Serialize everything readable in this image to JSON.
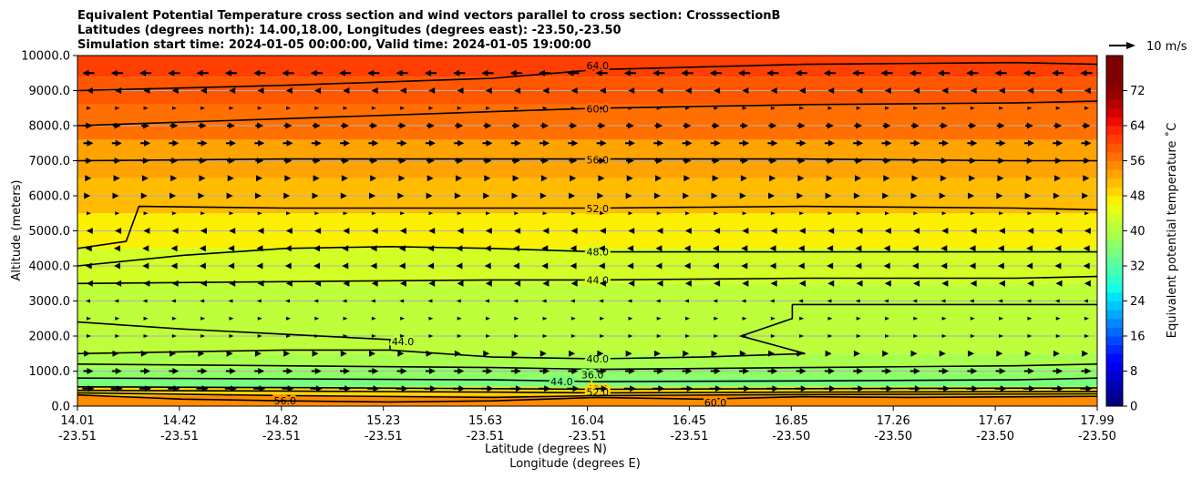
{
  "figure": {
    "title_lines": [
      "Equivalent Potential Temperature cross section and wind vectors parallel to cross section: CrosssectionB",
      "Latitudes (degrees north): 14.00,18.00, Longitudes (degrees east): -23.50,-23.50",
      "Simulation start time: 2024-01-05 00:00:00, Valid time: 2024-01-05 19:00:00"
    ]
  },
  "chart_data": {
    "type": "heatmap",
    "ylabel": "Altitude (meters)",
    "xlabel_lat": "Latitude (degrees N)",
    "xlabel_lon": "Longitude (degrees E)",
    "ylim": [
      0,
      10000
    ],
    "y_ticks": [
      "0.0",
      "1000.0",
      "2000.0",
      "3000.0",
      "4000.0",
      "5000.0",
      "6000.0",
      "7000.0",
      "8000.0",
      "9000.0",
      "10000.0"
    ],
    "x_ticks_lat": [
      "14.01",
      "14.42",
      "14.82",
      "15.23",
      "15.63",
      "16.04",
      "16.45",
      "16.85",
      "17.26",
      "17.67",
      "17.99"
    ],
    "x_ticks_lon": [
      "-23.51",
      "-23.51",
      "-23.51",
      "-23.51",
      "-23.51",
      "-23.51",
      "-23.51",
      "-23.50",
      "-23.50",
      "-23.50",
      "-23.50"
    ],
    "grid": "horizontal",
    "colorbar": {
      "label": "Equivalent potential temperature ˚C",
      "range": [
        0,
        80
      ],
      "ticks": [
        "0",
        "8",
        "16",
        "24",
        "32",
        "40",
        "48",
        "56",
        "64",
        "72"
      ],
      "levels": [
        {
          "min": 0,
          "max": 2,
          "color": "#00007f"
        },
        {
          "min": 2,
          "max": 4,
          "color": "#00009b"
        },
        {
          "min": 4,
          "max": 6,
          "color": "#0000b7"
        },
        {
          "min": 6,
          "max": 8,
          "color": "#0000d3"
        },
        {
          "min": 8,
          "max": 10,
          "color": "#0000ef"
        },
        {
          "min": 10,
          "max": 12,
          "color": "#0008ff"
        },
        {
          "min": 12,
          "max": 14,
          "color": "#0028ff"
        },
        {
          "min": 14,
          "max": 16,
          "color": "#0048ff"
        },
        {
          "min": 16,
          "max": 18,
          "color": "#0068ff"
        },
        {
          "min": 18,
          "max": 20,
          "color": "#0088ff"
        },
        {
          "min": 20,
          "max": 22,
          "color": "#00a8ff"
        },
        {
          "min": 22,
          "max": 24,
          "color": "#00c8ff"
        },
        {
          "min": 24,
          "max": 26,
          "color": "#00e4f8"
        },
        {
          "min": 26,
          "max": 28,
          "color": "#14ffe2"
        },
        {
          "min": 28,
          "max": 30,
          "color": "#2dffca"
        },
        {
          "min": 30,
          "max": 32,
          "color": "#46ffb1"
        },
        {
          "min": 32,
          "max": 34,
          "color": "#5eff98"
        },
        {
          "min": 34,
          "max": 36,
          "color": "#77ff7f"
        },
        {
          "min": 36,
          "max": 38,
          "color": "#8fff67"
        },
        {
          "min": 38,
          "max": 40,
          "color": "#a8ff4e"
        },
        {
          "min": 40,
          "max": 42,
          "color": "#bcff3a"
        },
        {
          "min": 42,
          "max": 44,
          "color": "#d2ff25"
        },
        {
          "min": 44,
          "max": 46,
          "color": "#e8ff0f"
        },
        {
          "min": 46,
          "max": 48,
          "color": "#fbf000"
        },
        {
          "min": 48,
          "max": 50,
          "color": "#ffd600"
        },
        {
          "min": 50,
          "max": 52,
          "color": "#ffbc00"
        },
        {
          "min": 52,
          "max": 54,
          "color": "#ffa300"
        },
        {
          "min": 54,
          "max": 56,
          "color": "#ff8a00"
        },
        {
          "min": 56,
          "max": 58,
          "color": "#ff7000"
        },
        {
          "min": 58,
          "max": 60,
          "color": "#ff5700"
        },
        {
          "min": 60,
          "max": 62,
          "color": "#ff3e00"
        },
        {
          "min": 62,
          "max": 64,
          "color": "#ff2400"
        },
        {
          "min": 64,
          "max": 66,
          "color": "#ef0b00"
        },
        {
          "min": 66,
          "max": 68,
          "color": "#d30000"
        },
        {
          "min": 68,
          "max": 70,
          "color": "#b70000"
        },
        {
          "min": 70,
          "max": 72,
          "color": "#9b0000"
        },
        {
          "min": 72,
          "max": 74,
          "color": "#8b0000"
        },
        {
          "min": 74,
          "max": 80,
          "color": "#7f0000"
        }
      ]
    },
    "field_bands": [
      {
        "y_bottom": 0,
        "y_top": 300,
        "theta_e": 55
      },
      {
        "y_bottom": 300,
        "y_top": 550,
        "theta_e": 49
      },
      {
        "y_bottom": 550,
        "y_top": 800,
        "theta_e": 34
      },
      {
        "y_bottom": 800,
        "y_top": 1100,
        "theta_e": 36
      },
      {
        "y_bottom": 1100,
        "y_top": 1500,
        "theta_e": 38
      },
      {
        "y_bottom": 1500,
        "y_top": 3500,
        "theta_e": 41
      },
      {
        "y_bottom": 3500,
        "y_top": 4500,
        "theta_e": 43
      },
      {
        "y_bottom": 4500,
        "y_top": 5500,
        "theta_e": 47
      },
      {
        "y_bottom": 5500,
        "y_top": 6500,
        "theta_e": 51
      },
      {
        "y_bottom": 6500,
        "y_top": 7600,
        "theta_e": 53
      },
      {
        "y_bottom": 7600,
        "y_top": 8600,
        "theta_e": 57
      },
      {
        "y_bottom": 8600,
        "y_top": 9400,
        "theta_e": 59
      },
      {
        "y_bottom": 9400,
        "y_top": 10000,
        "theta_e": 61
      }
    ],
    "contours": [
      {
        "level": "64.0",
        "label_x": 16.04,
        "label_y": 9720,
        "points": [
          [
            14.01,
            9000
          ],
          [
            14.82,
            9150
          ],
          [
            15.63,
            9350
          ],
          [
            16.04,
            9600
          ],
          [
            16.85,
            9750
          ],
          [
            17.67,
            9800
          ],
          [
            17.99,
            9750
          ]
        ]
      },
      {
        "level": "60.0",
        "label_x": 16.04,
        "label_y": 8480,
        "points": [
          [
            14.01,
            8000
          ],
          [
            14.82,
            8200
          ],
          [
            15.63,
            8400
          ],
          [
            16.04,
            8500
          ],
          [
            16.85,
            8600
          ],
          [
            17.67,
            8650
          ],
          [
            17.99,
            8700
          ]
        ]
      },
      {
        "level": "56.0",
        "label_x": 16.04,
        "label_y": 7030,
        "points": [
          [
            14.01,
            7000
          ],
          [
            14.82,
            7050
          ],
          [
            15.63,
            7050
          ],
          [
            16.04,
            7050
          ],
          [
            16.85,
            7050
          ],
          [
            17.67,
            7000
          ],
          [
            17.99,
            7000
          ]
        ]
      },
      {
        "level": "52.0",
        "label_x": 16.04,
        "label_y": 5640,
        "points": [
          [
            14.01,
            4500
          ],
          [
            14.2,
            4700
          ],
          [
            14.25,
            5700
          ],
          [
            14.82,
            5650
          ],
          [
            15.63,
            5650
          ],
          [
            16.04,
            5650
          ],
          [
            16.85,
            5700
          ],
          [
            17.67,
            5650
          ],
          [
            17.99,
            5600
          ]
        ]
      },
      {
        "level": "48.0",
        "label_x": 16.04,
        "label_y": 4400,
        "points": [
          [
            14.01,
            4000
          ],
          [
            14.42,
            4300
          ],
          [
            14.82,
            4500
          ],
          [
            15.23,
            4550
          ],
          [
            15.63,
            4500
          ],
          [
            16.04,
            4400
          ],
          [
            16.85,
            4400
          ],
          [
            17.67,
            4400
          ],
          [
            17.99,
            4400
          ]
        ]
      },
      {
        "level": "44.0",
        "label_x": 16.04,
        "label_y": 3600,
        "points": [
          [
            14.01,
            3500
          ],
          [
            14.82,
            3550
          ],
          [
            15.63,
            3600
          ],
          [
            16.04,
            3600
          ],
          [
            16.85,
            3650
          ],
          [
            17.67,
            3650
          ],
          [
            17.99,
            3700
          ]
        ]
      },
      {
        "level": "",
        "label_x": null,
        "label_y": null,
        "points": [
          [
            16.8,
            2900
          ],
          [
            17.3,
            2900
          ],
          [
            17.99,
            2900
          ]
        ]
      },
      {
        "level": "40.0",
        "label_x": 16.04,
        "label_y": 1350,
        "points": [
          [
            14.01,
            1500
          ],
          [
            14.82,
            1600
          ],
          [
            15.23,
            1600
          ],
          [
            15.63,
            1400
          ],
          [
            16.04,
            1350
          ],
          [
            16.45,
            1400
          ],
          [
            16.85,
            1500
          ],
          [
            16.6,
            2000
          ],
          [
            16.8,
            2500
          ],
          [
            16.8,
            2900
          ]
        ]
      },
      {
        "level": "44.0",
        "label_x": 15.28,
        "label_y": 1850,
        "points": [
          [
            14.01,
            2400
          ],
          [
            14.42,
            2200
          ],
          [
            14.82,
            2050
          ],
          [
            15.23,
            1900
          ],
          [
            15.23,
            1600
          ]
        ]
      },
      {
        "level": "36.0",
        "label_x": 16.02,
        "label_y": 900,
        "points": [
          [
            14.01,
            1200
          ],
          [
            14.82,
            1150
          ],
          [
            15.63,
            1100
          ],
          [
            16.04,
            1050
          ],
          [
            16.85,
            1100
          ],
          [
            17.67,
            1150
          ],
          [
            17.99,
            1200
          ]
        ]
      },
      {
        "level": "44.0",
        "label_x": 15.9,
        "label_y": 700,
        "points": [
          [
            14.01,
            800
          ],
          [
            14.82,
            780
          ],
          [
            15.63,
            750
          ],
          [
            16.04,
            700
          ],
          [
            16.85,
            720
          ],
          [
            17.67,
            750
          ],
          [
            17.99,
            800
          ]
        ]
      },
      {
        "level": "48.0",
        "label_x": 16.04,
        "label_y": 480,
        "points": [
          [
            14.01,
            550
          ],
          [
            14.82,
            530
          ],
          [
            15.63,
            500
          ],
          [
            16.04,
            480
          ],
          [
            16.85,
            500
          ],
          [
            17.99,
            520
          ]
        ]
      },
      {
        "level": "52.0",
        "label_x": 16.04,
        "label_y": 400,
        "points": [
          [
            14.01,
            450
          ],
          [
            14.82,
            430
          ],
          [
            15.63,
            400
          ],
          [
            16.04,
            380
          ],
          [
            16.85,
            400
          ],
          [
            17.99,
            420
          ]
        ]
      },
      {
        "level": "56.0",
        "label_x": 14.82,
        "label_y": 150,
        "points": [
          [
            14.01,
            380
          ],
          [
            14.82,
            300
          ],
          [
            15.63,
            250
          ],
          [
            16.04,
            300
          ],
          [
            16.85,
            330
          ],
          [
            17.99,
            350
          ]
        ]
      },
      {
        "level": "60.0",
        "label_x": 16.5,
        "label_y": 100,
        "points": [
          [
            14.01,
            320
          ],
          [
            14.42,
            200
          ],
          [
            14.82,
            150
          ],
          [
            15.23,
            120
          ],
          [
            15.63,
            150
          ],
          [
            16.04,
            250
          ],
          [
            16.45,
            200
          ],
          [
            16.85,
            270
          ],
          [
            17.26,
            250
          ],
          [
            17.99,
            280
          ]
        ]
      }
    ],
    "wind": {
      "reference_label": "10 m/s",
      "rows": [
        {
          "y": 9500,
          "u": -6
        },
        {
          "y": 9000,
          "u": -2
        },
        {
          "y": 8500,
          "u": 1
        },
        {
          "y": 8000,
          "u": 4
        },
        {
          "y": 7500,
          "u": 5
        },
        {
          "y": 7000,
          "u": 4
        },
        {
          "y": 6500,
          "u": 3
        },
        {
          "y": 6000,
          "u": 2
        },
        {
          "y": 5500,
          "u": 1
        },
        {
          "y": 5000,
          "u": -2
        },
        {
          "y": 4500,
          "u": -3
        },
        {
          "y": 4000,
          "u": -3
        },
        {
          "y": 3500,
          "u": -2
        },
        {
          "y": 3000,
          "u": -1
        },
        {
          "y": 2500,
          "u": 1
        },
        {
          "y": 2000,
          "u": 1
        },
        {
          "y": 1500,
          "u": 2
        },
        {
          "y": 1000,
          "u": 5
        },
        {
          "y": 500,
          "u": 6
        }
      ]
    }
  }
}
